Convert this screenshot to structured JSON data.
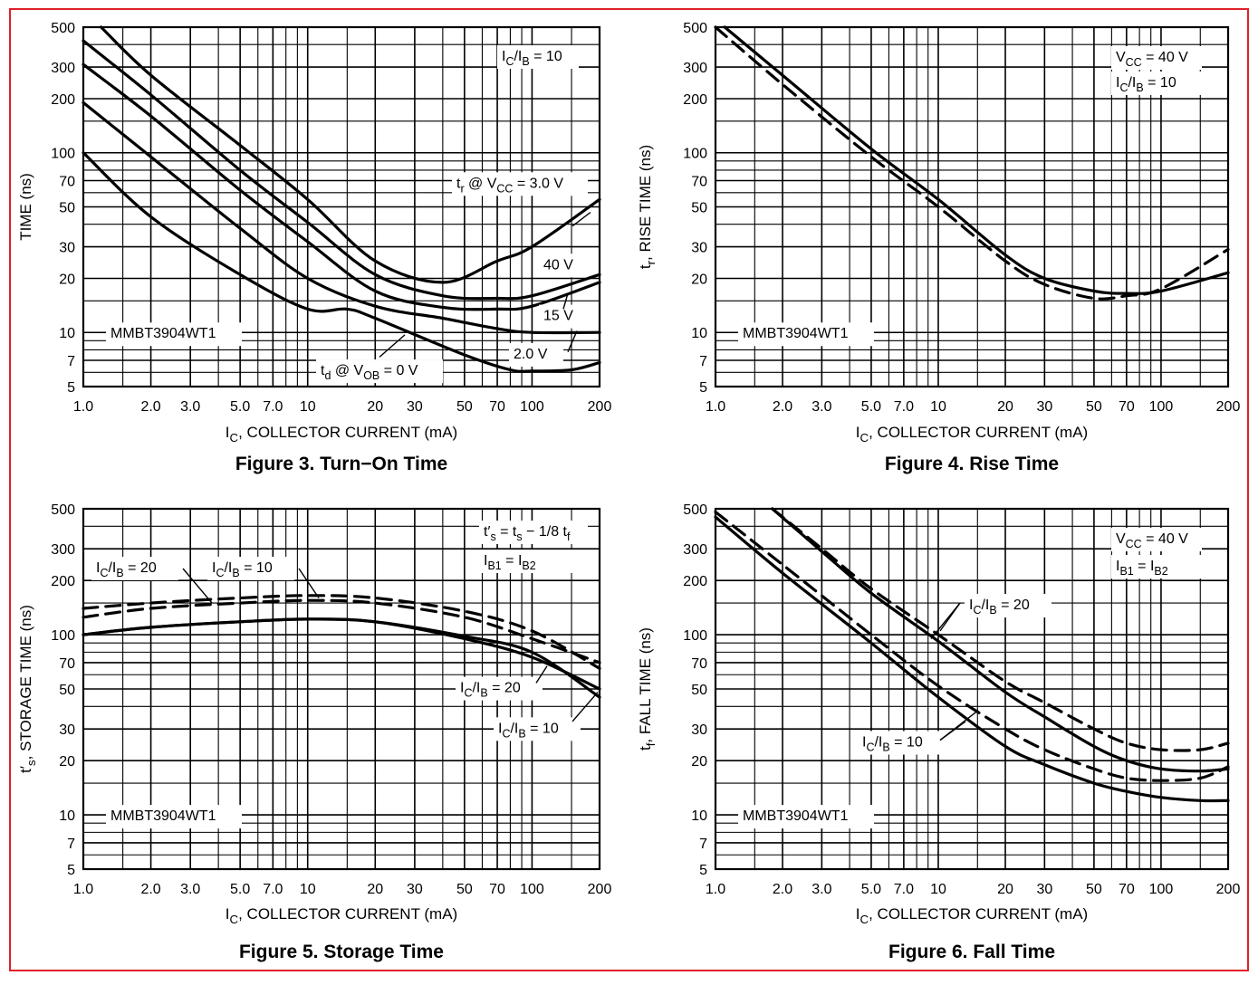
{
  "chart_data": [
    {
      "id": "fig3",
      "type": "line",
      "title": "Figure 3. Turn−On Time",
      "xlabel": "I_C, COLLECTOR CURRENT (mA)",
      "ylabel": "TIME (ns)",
      "xscale": "log",
      "yscale": "log",
      "xlim": [
        1,
        200
      ],
      "ylim": [
        5,
        500
      ],
      "x_ticks": [
        "1.0",
        "2.0",
        "3.0",
        "5.0",
        "7.0",
        "10",
        "20",
        "30",
        "50",
        "70",
        "100",
        "200"
      ],
      "y_ticks": [
        "5",
        "7",
        "10",
        "20",
        "30",
        "50",
        "70",
        "100",
        "200",
        "300",
        "500"
      ],
      "grid": true,
      "device": "MMBT3904WT1",
      "conditions": [
        "I_C/I_B = 10"
      ],
      "series": [
        {
          "name": "t_r @ V_CC = 3.0 V",
          "style": "solid",
          "x": [
            1.2,
            2,
            5,
            10,
            20,
            40,
            70,
            100,
            200
          ],
          "y": [
            500,
            270,
            110,
            55,
            25,
            19,
            25,
            30,
            55
          ]
        },
        {
          "name": "40 V",
          "style": "solid",
          "x": [
            1,
            2,
            5,
            10,
            20,
            40,
            70,
            100,
            200
          ],
          "y": [
            420,
            210,
            80,
            41,
            21,
            16,
            15.5,
            16,
            21
          ]
        },
        {
          "name": "15 V",
          "style": "solid",
          "x": [
            1,
            2,
            5,
            10,
            20,
            40,
            70,
            100,
            200
          ],
          "y": [
            310,
            160,
            62,
            32,
            17,
            13.8,
            13.5,
            14,
            19
          ]
        },
        {
          "name": "2.0 V",
          "style": "solid",
          "x": [
            1,
            2,
            5,
            10,
            20,
            40,
            70,
            100,
            200
          ],
          "y": [
            190,
            95,
            38,
            20,
            14,
            12,
            10.5,
            10,
            10
          ]
        },
        {
          "name": "t_d @ V_OB = 0 V",
          "style": "solid",
          "x": [
            1,
            2,
            5,
            10,
            15,
            20,
            50,
            80,
            100,
            150,
            200
          ],
          "y": [
            100,
            44,
            21,
            13.5,
            13.5,
            12,
            7.5,
            6.2,
            6.1,
            6.2,
            6.8
          ]
        }
      ]
    },
    {
      "id": "fig4",
      "type": "line",
      "title": "Figure 4. Rise Time",
      "xlabel": "I_C, COLLECTOR CURRENT (mA)",
      "ylabel": "t_r, RISE TIME (ns)",
      "xscale": "log",
      "yscale": "log",
      "xlim": [
        1,
        200
      ],
      "ylim": [
        5,
        500
      ],
      "x_ticks": [
        "1.0",
        "2.0",
        "3.0",
        "5.0",
        "7.0",
        "10",
        "20",
        "30",
        "50",
        "70",
        "100",
        "200"
      ],
      "y_ticks": [
        "5",
        "7",
        "10",
        "20",
        "30",
        "50",
        "70",
        "100",
        "200",
        "300",
        "500"
      ],
      "grid": true,
      "device": "MMBT3904WT1",
      "conditions": [
        "V_CC = 40 V",
        "I_C/I_B = 10"
      ],
      "series": [
        {
          "name": "",
          "style": "solid",
          "x": [
            1.1,
            2,
            5,
            10,
            20,
            30,
            50,
            70,
            100,
            200
          ],
          "y": [
            500,
            270,
            105,
            55,
            27,
            20,
            17,
            16.5,
            17,
            21.5
          ]
        },
        {
          "name": "",
          "style": "dashed",
          "x": [
            1,
            2,
            5,
            10,
            20,
            30,
            50,
            70,
            100,
            200
          ],
          "y": [
            500,
            240,
            95,
            50,
            25,
            18.5,
            15.5,
            16,
            17.5,
            29
          ]
        }
      ]
    },
    {
      "id": "fig5",
      "type": "line",
      "title": "Figure 5. Storage Time",
      "xlabel": "I_C, COLLECTOR CURRENT (mA)",
      "ylabel": "t′_s, STORAGE TIME (ns)",
      "xscale": "log",
      "yscale": "log",
      "xlim": [
        1,
        200
      ],
      "ylim": [
        5,
        500
      ],
      "x_ticks": [
        "1.0",
        "2.0",
        "3.0",
        "5.0",
        "7.0",
        "10",
        "20",
        "30",
        "50",
        "70",
        "100",
        "200"
      ],
      "y_ticks": [
        "5",
        "7",
        "10",
        "20",
        "30",
        "50",
        "70",
        "100",
        "200",
        "300",
        "500"
      ],
      "grid": true,
      "device": "MMBT3904WT1",
      "conditions": [
        "t′_s = t_s − 1/8 t_f",
        "I_B1 = I_B2"
      ],
      "series": [
        {
          "name": "I_C/I_B = 20",
          "style": "dashed",
          "x": [
            1,
            2,
            5,
            10,
            20,
            50,
            100,
            200
          ],
          "y": [
            140,
            150,
            160,
            165,
            160,
            135,
            105,
            65
          ]
        },
        {
          "name": "I_C/I_B = 10",
          "style": "dashed",
          "x": [
            1,
            2,
            5,
            10,
            20,
            50,
            100,
            200
          ],
          "y": [
            125,
            140,
            150,
            155,
            150,
            125,
            95,
            70
          ]
        },
        {
          "name": "I_C/I_B = 20",
          "style": "solid",
          "x": [
            1,
            2,
            5,
            10,
            20,
            50,
            100,
            200
          ],
          "y": [
            100,
            110,
            118,
            122,
            118,
            95,
            75,
            50
          ]
        },
        {
          "name": "I_C/I_B = 10",
          "style": "solid",
          "x": [
            1,
            2,
            5,
            10,
            20,
            50,
            100,
            200
          ],
          "y": [
            100,
            110,
            118,
            122,
            118,
            98,
            80,
            45
          ]
        }
      ]
    },
    {
      "id": "fig6",
      "type": "line",
      "title": "Figure 6. Fall Time",
      "xlabel": "I_C, COLLECTOR CURRENT (mA)",
      "ylabel": "t_f, FALL TIME (ns)",
      "xscale": "log",
      "yscale": "log",
      "xlim": [
        1,
        200
      ],
      "ylim": [
        5,
        500
      ],
      "x_ticks": [
        "1.0",
        "2.0",
        "3.0",
        "5.0",
        "7.0",
        "10",
        "20",
        "30",
        "50",
        "70",
        "100",
        "200"
      ],
      "y_ticks": [
        "5",
        "7",
        "10",
        "20",
        "30",
        "50",
        "70",
        "100",
        "200",
        "300",
        "500"
      ],
      "grid": true,
      "device": "MMBT3904WT1",
      "conditions": [
        "V_CC = 40 V",
        "I_B1 = I_B2"
      ],
      "series": [
        {
          "name": "I_C/I_B = 20",
          "style": "dashed",
          "x": [
            1.8,
            3,
            5,
            10,
            20,
            30,
            50,
            70,
            100,
            150,
            200
          ],
          "y": [
            500,
            300,
            180,
            100,
            55,
            42,
            30,
            25,
            23,
            23,
            25
          ]
        },
        {
          "name": "I_C/I_B = 20",
          "style": "solid",
          "x": [
            1.8,
            3,
            5,
            10,
            20,
            30,
            50,
            70,
            100,
            150,
            200
          ],
          "y": [
            500,
            290,
            170,
            92,
            48,
            35,
            24,
            20,
            18,
            17.5,
            18
          ]
        },
        {
          "name": "I_C/I_B = 10",
          "style": "dashed",
          "x": [
            1,
            2,
            5,
            10,
            20,
            30,
            50,
            70,
            100,
            150,
            200
          ],
          "y": [
            480,
            245,
            100,
            52,
            30,
            23,
            18,
            16,
            15.5,
            16,
            18.5
          ]
        },
        {
          "name": "I_C/I_B = 10",
          "style": "solid",
          "x": [
            1,
            2,
            5,
            10,
            20,
            30,
            50,
            70,
            100,
            150,
            200
          ],
          "y": [
            450,
            220,
            90,
            45,
            24,
            19,
            15,
            13.5,
            12.5,
            12,
            12
          ]
        }
      ]
    }
  ]
}
